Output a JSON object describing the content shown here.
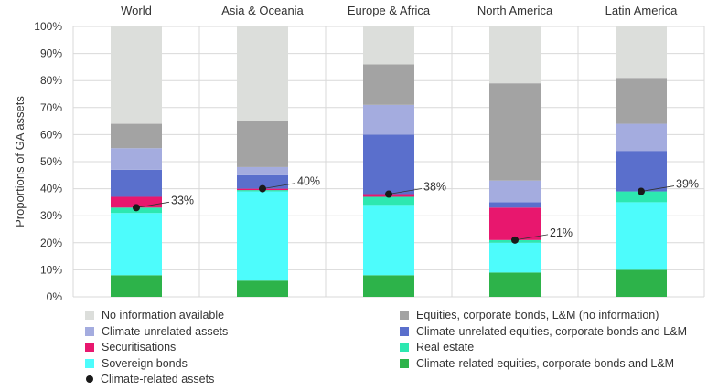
{
  "chart_data": {
    "type": "bar",
    "stacked": true,
    "categories": [
      "World",
      "Asia & Oceania",
      "Europe & Africa",
      "North America",
      "Latin America"
    ],
    "ylabel": "Proportions of GA assets",
    "ylim": [
      0,
      100
    ],
    "yticks": [
      "0%",
      "10%",
      "20%",
      "30%",
      "40%",
      "50%",
      "60%",
      "70%",
      "80%",
      "90%",
      "100%"
    ],
    "series": [
      {
        "name": "Climate-related equities, corporate bonds and L&M",
        "color": "#2db34a",
        "values": [
          8,
          6,
          8,
          9,
          10
        ]
      },
      {
        "name": "Sovereign bonds",
        "color": "#4dfcfc",
        "values": [
          23,
          33,
          26,
          11,
          25
        ]
      },
      {
        "name": "Real estate",
        "color": "#2de8b0",
        "values": [
          2,
          0.5,
          3,
          1,
          4
        ]
      },
      {
        "name": "Securitisations",
        "color": "#e8176e",
        "values": [
          4,
          0.5,
          1,
          12,
          0
        ]
      },
      {
        "name": "Climate-unrelated equities, corporate bonds and L&M",
        "color": "#5a6fcc",
        "values": [
          10,
          5,
          22,
          2,
          15
        ]
      },
      {
        "name": "Climate-unrelated assets",
        "color": "#a4acdf",
        "values": [
          8,
          3,
          11,
          8,
          10
        ]
      },
      {
        "name": "Equities, corporate bonds, L&M (no information)",
        "color": "#a3a3a3",
        "values": [
          9,
          17,
          15,
          36,
          17
        ]
      },
      {
        "name": "No information available",
        "color": "#dcdedb",
        "values": [
          36,
          35,
          14,
          21,
          19
        ]
      }
    ],
    "marker_series": {
      "name": "Climate-related assets",
      "values": [
        33,
        40,
        38,
        21,
        39
      ],
      "labels": [
        "33%",
        "40%",
        "38%",
        "21%",
        "39%"
      ]
    },
    "legend": {
      "placement": "bottom",
      "left_column": [
        "No information available",
        "Climate-unrelated assets",
        "Securitisations",
        "Sovereign bonds",
        "Climate-related assets"
      ],
      "right_column": [
        "Equities, corporate bonds, L&M (no information)",
        "Climate-unrelated equities, corporate bonds and L&M",
        "Real estate",
        "Climate-related equities, corporate bonds and L&M"
      ]
    }
  }
}
